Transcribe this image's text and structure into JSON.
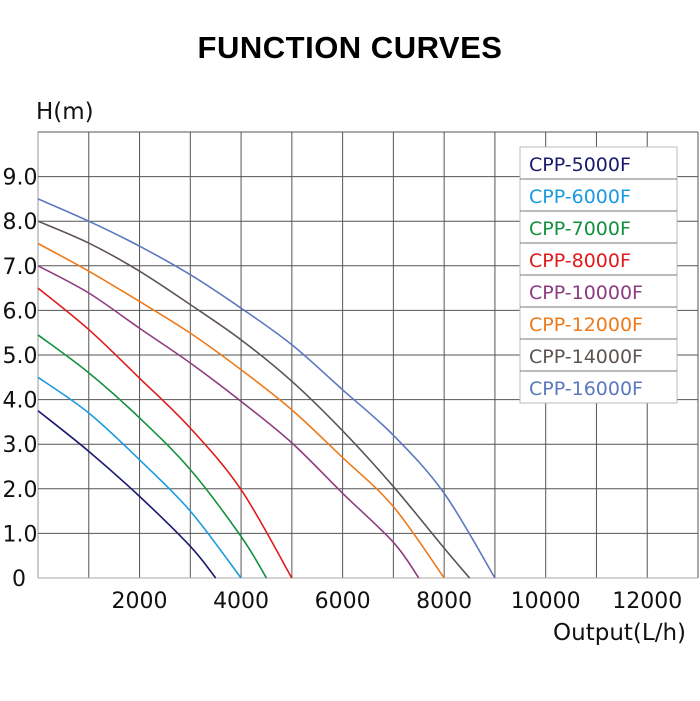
{
  "title": "FUNCTION CURVES",
  "chart_data": {
    "type": "line",
    "title": "FUNCTION CURVES",
    "xlabel": "Output(L/h)",
    "ylabel": "H(m)",
    "xlim": [
      0,
      13000
    ],
    "ylim": [
      0,
      10
    ],
    "grid": true,
    "x_grid_step": 1000,
    "y_grid_step": 1,
    "x_tick_labels": [
      {
        "value": 2000,
        "label": "2000"
      },
      {
        "value": 4000,
        "label": "4000"
      },
      {
        "value": 6000,
        "label": "6000"
      },
      {
        "value": 8000,
        "label": "8000"
      },
      {
        "value": 10000,
        "label": "10000"
      },
      {
        "value": 12000,
        "label": "12000"
      }
    ],
    "y_tick_labels": [
      {
        "value": 0,
        "label": "0"
      },
      {
        "value": 1,
        "label": "1.0"
      },
      {
        "value": 2,
        "label": "2.0"
      },
      {
        "value": 3,
        "label": "3.0"
      },
      {
        "value": 4,
        "label": "4.0"
      },
      {
        "value": 5,
        "label": "5.0"
      },
      {
        "value": 6,
        "label": "6.0"
      },
      {
        "value": 7,
        "label": "7.0"
      },
      {
        "value": 8,
        "label": "8.0"
      },
      {
        "value": 9,
        "label": "9.0"
      }
    ],
    "legend_position": "top-right",
    "series": [
      {
        "name": "CPP-5000F",
        "color": "#1b1a6e",
        "x": [
          0,
          1000,
          2000,
          3000,
          3500
        ],
        "y": [
          3.75,
          2.84,
          1.83,
          0.71,
          0
        ]
      },
      {
        "name": "CPP-6000F",
        "color": "#1a9ae0",
        "x": [
          0,
          1000,
          2000,
          3000,
          4000
        ],
        "y": [
          4.5,
          3.7,
          2.65,
          1.5,
          0
        ]
      },
      {
        "name": "CPP-7000F",
        "color": "#13913f",
        "x": [
          0,
          1000,
          2000,
          3000,
          4000,
          4500
        ],
        "y": [
          5.45,
          4.6,
          3.59,
          2.43,
          0.93,
          0
        ]
      },
      {
        "name": "CPP-8000F",
        "color": "#e01b1b",
        "x": [
          0,
          1000,
          2000,
          3000,
          4000,
          5000
        ],
        "y": [
          6.5,
          5.57,
          4.48,
          3.36,
          1.98,
          0
        ]
      },
      {
        "name": "CPP-10000F",
        "color": "#8e3c80",
        "x": [
          0,
          1000,
          2000,
          3000,
          4000,
          5000,
          6000,
          7000,
          7500
        ],
        "y": [
          7.0,
          6.39,
          5.6,
          4.82,
          3.96,
          3.03,
          1.9,
          0.8,
          0
        ]
      },
      {
        "name": "CPP-12000F",
        "color": "#ee7a1a",
        "x": [
          0,
          1000,
          2000,
          3000,
          4000,
          5000,
          6000,
          7000,
          8000
        ],
        "y": [
          7.5,
          6.88,
          6.2,
          5.49,
          4.67,
          3.77,
          2.7,
          1.6,
          0
        ]
      },
      {
        "name": "CPP-14000F",
        "color": "#5e5552",
        "x": [
          0,
          1000,
          2000,
          3000,
          4000,
          5000,
          6000,
          7000,
          8000,
          8500
        ],
        "y": [
          8.0,
          7.51,
          6.88,
          6.13,
          5.34,
          4.41,
          3.3,
          2.05,
          0.67,
          0
        ]
      },
      {
        "name": "CPP-16000F",
        "color": "#5b78c0",
        "x": [
          0,
          1000,
          2000,
          3000,
          4000,
          5000,
          6000,
          7000,
          8000,
          9000
        ],
        "y": [
          8.5,
          8.0,
          7.44,
          6.8,
          6.05,
          5.23,
          4.22,
          3.2,
          1.9,
          0
        ]
      }
    ]
  }
}
